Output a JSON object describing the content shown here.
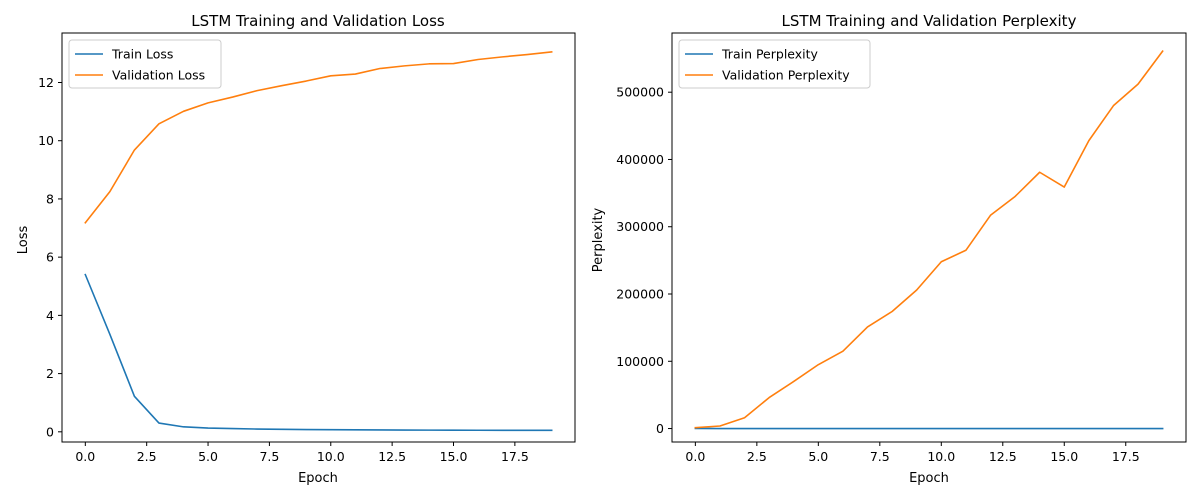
{
  "colors": {
    "train": "#1f77b4",
    "validation": "#ff7f0e",
    "axes": "#000000",
    "legend_border": "#cccccc",
    "background": "#ffffff"
  },
  "chart_data": [
    {
      "type": "line",
      "title": "LSTM Training and Validation Loss",
      "xlabel": "Epoch",
      "ylabel": "Loss",
      "xlim": [
        -0.95,
        19.95
      ],
      "ylim": [
        -0.35,
        13.7
      ],
      "xticks": [
        0.0,
        2.5,
        5.0,
        7.5,
        10.0,
        12.5,
        15.0,
        17.5
      ],
      "xtick_labels": [
        "0.0",
        "2.5",
        "5.0",
        "7.5",
        "10.0",
        "12.5",
        "15.0",
        "17.5"
      ],
      "yticks": [
        0,
        2,
        4,
        6,
        8,
        10,
        12
      ],
      "ytick_labels": [
        "0",
        "2",
        "4",
        "6",
        "8",
        "10",
        "12"
      ],
      "grid": false,
      "legend_position": "upper-left",
      "x": [
        0,
        1,
        2,
        3,
        4,
        5,
        6,
        7,
        8,
        9,
        10,
        11,
        12,
        13,
        14,
        15,
        16,
        17,
        18,
        19
      ],
      "series": [
        {
          "name": "Train Loss",
          "color": "#1f77b4",
          "values": [
            5.4,
            3.35,
            1.22,
            0.3,
            0.17,
            0.13,
            0.11,
            0.095,
            0.085,
            0.078,
            0.072,
            0.068,
            0.064,
            0.061,
            0.058,
            0.056,
            0.054,
            0.052,
            0.051,
            0.05
          ]
        },
        {
          "name": "Validation Loss",
          "color": "#ff7f0e",
          "values": [
            7.18,
            8.25,
            9.68,
            10.58,
            11.01,
            11.3,
            11.5,
            11.72,
            11.89,
            12.05,
            12.23,
            12.29,
            12.48,
            12.57,
            12.64,
            12.65,
            12.79,
            12.88,
            12.96,
            13.05
          ]
        }
      ]
    },
    {
      "type": "line",
      "title": "LSTM Training and Validation Perplexity",
      "xlabel": "Epoch",
      "ylabel": "Perplexity",
      "xlim": [
        -0.95,
        19.95
      ],
      "ylim": [
        -20000,
        588000
      ],
      "xticks": [
        0.0,
        2.5,
        5.0,
        7.5,
        10.0,
        12.5,
        15.0,
        17.5
      ],
      "xtick_labels": [
        "0.0",
        "2.5",
        "5.0",
        "7.5",
        "10.0",
        "12.5",
        "15.0",
        "17.5"
      ],
      "yticks": [
        0,
        100000,
        200000,
        300000,
        400000,
        500000
      ],
      "ytick_labels": [
        "0",
        "100000",
        "200000",
        "300000",
        "400000",
        "500000"
      ],
      "grid": false,
      "legend_position": "upper-left",
      "x": [
        0,
        1,
        2,
        3,
        4,
        5,
        6,
        7,
        8,
        9,
        10,
        11,
        12,
        13,
        14,
        15,
        16,
        17,
        18,
        19
      ],
      "series": [
        {
          "name": "Train Perplexity",
          "color": "#1f77b4",
          "values": [
            221,
            28,
            3.4,
            1.35,
            1.19,
            1.14,
            1.12,
            1.1,
            1.09,
            1.08,
            1.07,
            1.07,
            1.07,
            1.06,
            1.06,
            1.06,
            1.06,
            1.05,
            1.05,
            1.05
          ]
        },
        {
          "name": "Validation Perplexity",
          "color": "#ff7f0e",
          "values": [
            1300,
            3800,
            16000,
            46000,
            70000,
            95000,
            115000,
            151000,
            174000,
            206000,
            248000,
            265000,
            317000,
            345000,
            381000,
            359000,
            428000,
            480000,
            512000,
            561000
          ]
        }
      ]
    }
  ]
}
